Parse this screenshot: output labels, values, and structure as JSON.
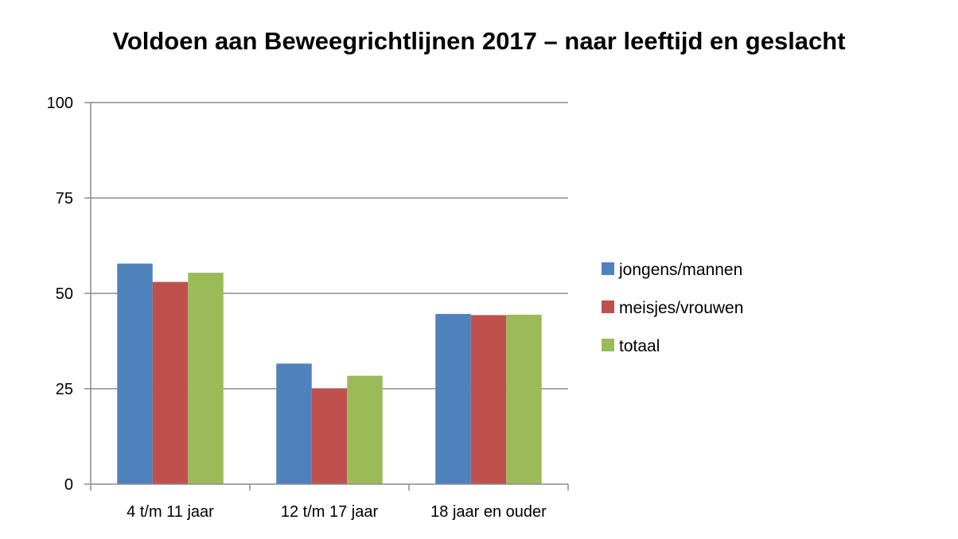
{
  "chart_data": {
    "type": "bar",
    "title": "Voldoen aan Beweegrichtlijnen 2017 – naar leeftijd en geslacht",
    "xlabel": "",
    "ylabel": "",
    "ylim": [
      0,
      100
    ],
    "yticks": [
      0,
      25,
      50,
      75,
      100
    ],
    "grid": true,
    "legend_position": "right",
    "categories": [
      "4 t/m 11 jaar",
      "12 t/m 17 jaar",
      "18 jaar en ouder"
    ],
    "series": [
      {
        "name": "jongens/mannen",
        "color": "#4f81bd",
        "values": [
          57.8,
          31.6,
          44.6
        ]
      },
      {
        "name": "meisjes/vrouwen",
        "color": "#c0504d",
        "values": [
          53.0,
          25.0,
          44.3
        ]
      },
      {
        "name": "totaal",
        "color": "#9bbb59",
        "values": [
          55.4,
          28.4,
          44.4
        ]
      }
    ]
  }
}
